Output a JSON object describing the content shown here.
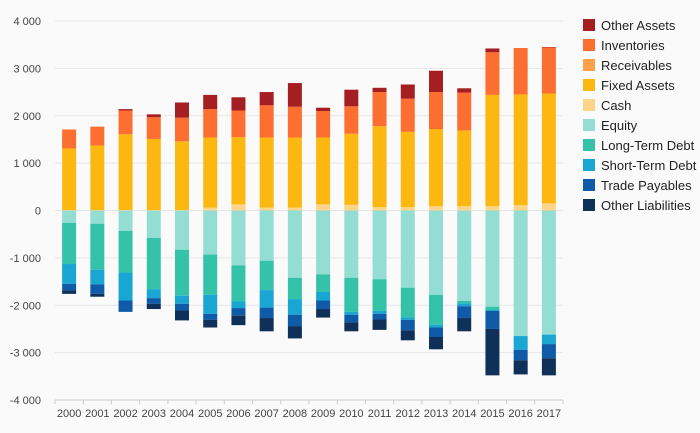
{
  "chart_data": {
    "type": "bar",
    "stacked": true,
    "categories": [
      "2000",
      "2001",
      "2002",
      "2003",
      "2004",
      "2005",
      "2006",
      "2007",
      "2008",
      "2009",
      "2010",
      "2011",
      "2012",
      "2013",
      "2014",
      "2015",
      "2016",
      "2017"
    ],
    "ylim": [
      -4000,
      4000
    ],
    "yticks": [
      -4000,
      -3000,
      -2000,
      -1000,
      0,
      1000,
      2000,
      3000,
      4000
    ],
    "ytick_labels": [
      "-4 000",
      "-3 000",
      "-2 000",
      "-1 000",
      "0",
      "1 000",
      "2 000",
      "3 000",
      "4 000"
    ],
    "grid": true,
    "legend_position": "right",
    "positive_series": [
      {
        "name": "Cash",
        "color": "#fdd58a",
        "values": [
          10,
          10,
          10,
          10,
          10,
          60,
          130,
          60,
          60,
          130,
          120,
          70,
          70,
          90,
          90,
          90,
          110,
          150
        ]
      },
      {
        "name": "Fixed Assets",
        "color": "#fcb711",
        "values": [
          1300,
          1360,
          1600,
          1500,
          1450,
          1480,
          1420,
          1480,
          1480,
          1410,
          1500,
          1710,
          1590,
          1630,
          1600,
          2350,
          2340,
          2320
        ]
      },
      {
        "name": "Receivables",
        "color": "#ffa04a",
        "values": [
          0,
          0,
          0,
          0,
          0,
          0,
          0,
          0,
          0,
          0,
          0,
          0,
          0,
          0,
          0,
          0,
          0,
          0
        ]
      },
      {
        "name": "Inventories",
        "color": "#fd6f30",
        "values": [
          400,
          400,
          500,
          460,
          500,
          600,
          560,
          680,
          650,
          560,
          580,
          720,
          700,
          780,
          800,
          900,
          980,
          970
        ]
      },
      {
        "name": "Other Assets",
        "color": "#a51e22",
        "values": [
          0,
          0,
          30,
          60,
          320,
          300,
          280,
          280,
          500,
          70,
          350,
          90,
          300,
          450,
          90,
          80,
          0,
          10
        ]
      }
    ],
    "negative_series": [
      {
        "name": "Equity",
        "color": "#93ddd3",
        "values": [
          260,
          280,
          430,
          580,
          830,
          930,
          1160,
          1060,
          1420,
          1350,
          1420,
          1450,
          1630,
          1780,
          1910,
          2030,
          2650,
          2620
        ]
      },
      {
        "name": "Long-Term Debt",
        "color": "#34c2a9",
        "values": [
          870,
          970,
          880,
          1080,
          970,
          850,
          760,
          620,
          450,
          370,
          720,
          670,
          630,
          630,
          50,
          70,
          0,
          0
        ]
      },
      {
        "name": "Short-Term Debt",
        "color": "#1aa6d2",
        "values": [
          420,
          310,
          590,
          190,
          170,
          400,
          140,
          370,
          330,
          180,
          60,
          60,
          50,
          60,
          60,
          20,
          290,
          200
        ]
      },
      {
        "name": "Trade Payables",
        "color": "#0f5ba8",
        "values": [
          140,
          200,
          240,
          120,
          140,
          130,
          160,
          220,
          240,
          180,
          160,
          120,
          220,
          200,
          250,
          380,
          220,
          300
        ]
      },
      {
        "name": "Other Liabilities",
        "color": "#0f3159",
        "values": [
          70,
          60,
          0,
          110,
          210,
          160,
          200,
          280,
          260,
          180,
          190,
          220,
          210,
          260,
          280,
          980,
          300,
          360
        ]
      }
    ],
    "legend": [
      {
        "name": "Other Assets",
        "color": "#a51e22"
      },
      {
        "name": "Inventories",
        "color": "#fd6f30"
      },
      {
        "name": "Receivables",
        "color": "#ffa04a"
      },
      {
        "name": "Fixed Assets",
        "color": "#fcb711"
      },
      {
        "name": "Cash",
        "color": "#fdd58a"
      },
      {
        "name": "Equity",
        "color": "#93ddd3"
      },
      {
        "name": "Long-Term Debt",
        "color": "#34c2a9"
      },
      {
        "name": "Short-Term Debt",
        "color": "#1aa6d2"
      },
      {
        "name": "Trade Payables",
        "color": "#0f5ba8"
      },
      {
        "name": "Other Liabilities",
        "color": "#0f3159"
      }
    ]
  }
}
